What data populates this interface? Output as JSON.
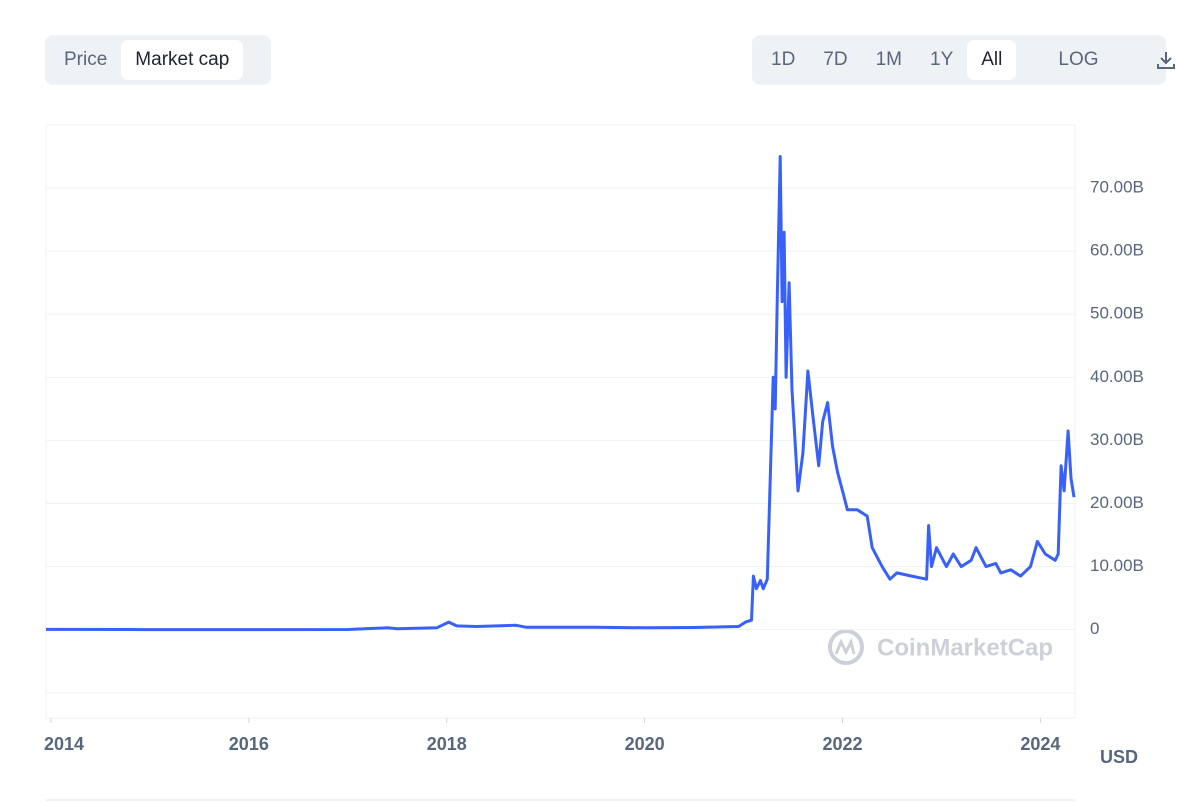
{
  "toolbar": {
    "tabs": [
      "Price",
      "Market cap"
    ],
    "active_tab": 1,
    "ranges": [
      "1D",
      "7D",
      "1M",
      "1Y",
      "All"
    ],
    "active_range": 4,
    "scale_button": "LOG"
  },
  "chart_data": {
    "type": "line",
    "color": "#3861fb",
    "grid": true,
    "unit": "USD",
    "watermark": "CoinMarketCap",
    "xlim": [
      2013.95,
      2024.35
    ],
    "xticks": [
      2014,
      2016,
      2018,
      2020,
      2022,
      2024
    ],
    "ylim": [
      -14,
      80
    ],
    "yticks": [
      0,
      {
        "value": 10,
        "label": "10.00B"
      },
      {
        "value": 20,
        "label": "20.00B"
      },
      {
        "value": 30,
        "label": "30.00B"
      },
      {
        "value": 40,
        "label": "40.00B"
      },
      {
        "value": 50,
        "label": "50.00B"
      },
      {
        "value": 60,
        "label": "60.00B"
      },
      {
        "value": 70,
        "label": "70.00B"
      }
    ],
    "x": [
      2013.95,
      2015,
      2016,
      2017,
      2017.4,
      2017.5,
      2017.9,
      2018.02,
      2018.1,
      2018.3,
      2018.7,
      2018.8,
      2019.5,
      2020.0,
      2020.5,
      2020.95,
      2021.02,
      2021.08,
      2021.1,
      2021.13,
      2021.17,
      2021.2,
      2021.24,
      2021.3,
      2021.32,
      2021.34,
      2021.37,
      2021.39,
      2021.41,
      2021.43,
      2021.46,
      2021.49,
      2021.52,
      2021.55,
      2021.6,
      2021.65,
      2021.7,
      2021.76,
      2021.8,
      2021.85,
      2021.9,
      2021.95,
      2022.0,
      2022.05,
      2022.15,
      2022.25,
      2022.3,
      2022.4,
      2022.48,
      2022.55,
      2022.7,
      2022.85,
      2022.87,
      2022.9,
      2022.95,
      2023.05,
      2023.12,
      2023.2,
      2023.3,
      2023.35,
      2023.45,
      2023.55,
      2023.6,
      2023.7,
      2023.8,
      2023.9,
      2023.97,
      2024.05,
      2024.15,
      2024.18,
      2024.21,
      2024.24,
      2024.28,
      2024.31,
      2024.34
    ],
    "values": [
      0.05,
      0.02,
      0.02,
      0.03,
      0.3,
      0.15,
      0.3,
      1.2,
      0.6,
      0.5,
      0.7,
      0.4,
      0.4,
      0.3,
      0.35,
      0.5,
      1.2,
      1.5,
      8.5,
      6.5,
      7.8,
      6.5,
      8,
      40,
      35,
      52,
      75,
      52,
      63,
      40,
      55,
      38,
      30,
      22,
      28,
      41,
      34,
      26,
      33,
      36,
      29,
      25,
      22,
      19,
      19,
      18,
      13,
      10,
      8,
      9,
      8.5,
      8,
      16.5,
      10,
      13,
      10,
      12,
      10,
      11,
      13,
      10,
      10.5,
      9,
      9.5,
      8.5,
      10,
      14,
      12,
      11,
      12,
      26,
      22,
      31.5,
      24,
      21
    ]
  }
}
